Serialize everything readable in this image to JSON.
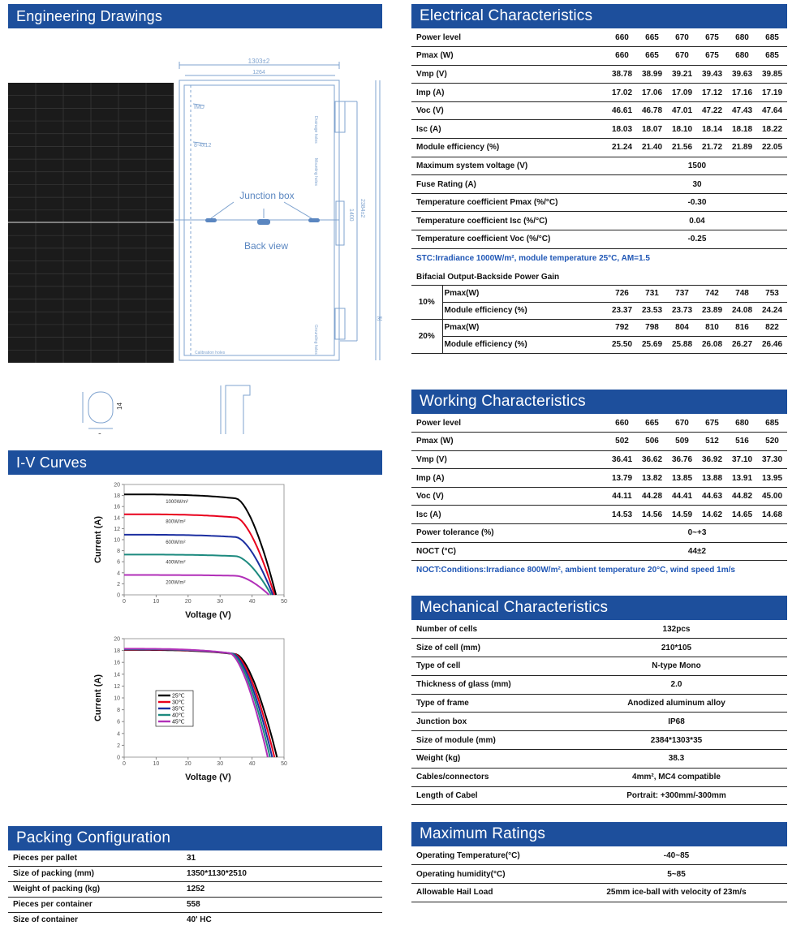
{
  "engineering": {
    "title": "Engineering Drawings",
    "dims": {
      "width_total": "1303±2",
      "width_inner": "1264",
      "side_len": "2384±2",
      "side_inner": "1400",
      "thickness": "35",
      "corner_h": "14",
      "corner_w": "9"
    },
    "labels": {
      "junction_box": "Junction box",
      "back_view": "Back view",
      "drainage": "Drainage holes",
      "mounting": "Mounting holes",
      "grounding": "Grounding holes",
      "calibration": "Calibration holes",
      "gap1": "IMD",
      "gap2": "8-4x12"
    }
  },
  "iv": {
    "title": "I-V Curves",
    "xlabel": "Voltage (V)",
    "ylabel": "Current (A)"
  },
  "chart_data": [
    {
      "type": "line",
      "xlabel": "Voltage (V)",
      "ylabel": "Current (A)",
      "xlim": [
        0,
        50
      ],
      "ylim": [
        0,
        20
      ],
      "xticks": [
        "0",
        "10",
        "20",
        "30",
        "40",
        "50"
      ],
      "yticks": [
        "0",
        "2",
        "4",
        "6",
        "8",
        "10",
        "12",
        "14",
        "16",
        "18",
        "20"
      ],
      "series": [
        {
          "name": "1000W/m²",
          "isc": 18.2,
          "knee": 35,
          "voc": 47.5,
          "color": "#000000"
        },
        {
          "name": "800W/m²",
          "isc": 14.6,
          "knee": 35,
          "voc": 47.0,
          "color": "#e8001c"
        },
        {
          "name": "600W/m²",
          "isc": 10.9,
          "knee": 35,
          "voc": 46.5,
          "color": "#1b2ea0"
        },
        {
          "name": "400W/m²",
          "isc": 7.3,
          "knee": 35,
          "voc": 46.0,
          "color": "#1d8a7f"
        },
        {
          "name": "200W/m²",
          "isc": 3.6,
          "knee": 35,
          "voc": 45.3,
          "color": "#b12fb8"
        }
      ]
    },
    {
      "type": "line",
      "xlabel": "Voltage (V)",
      "ylabel": "Current (A)",
      "xlim": [
        0,
        50
      ],
      "ylim": [
        0,
        20
      ],
      "xticks": [
        "0",
        "10",
        "20",
        "30",
        "40",
        "50"
      ],
      "yticks": [
        "0",
        "2",
        "4",
        "6",
        "8",
        "10",
        "12",
        "14",
        "16",
        "18",
        "20"
      ],
      "legend": "center-left",
      "series": [
        {
          "name": "25℃",
          "isc": 18.1,
          "knee": 35,
          "voc": 47.8,
          "color": "#000000"
        },
        {
          "name": "30℃",
          "isc": 18.15,
          "knee": 34.5,
          "voc": 47.0,
          "color": "#e8001c"
        },
        {
          "name": "35℃",
          "isc": 18.2,
          "knee": 34,
          "voc": 46.3,
          "color": "#1b2ea0"
        },
        {
          "name": "40℃",
          "isc": 18.25,
          "knee": 33.5,
          "voc": 45.6,
          "color": "#1d8a7f"
        },
        {
          "name": "45℃",
          "isc": 18.3,
          "knee": 33,
          "voc": 44.9,
          "color": "#b12fb8"
        }
      ]
    }
  ],
  "packing": {
    "title": "Packing Configuration",
    "rows": [
      {
        "label": "Pieces per pallet",
        "value": "31"
      },
      {
        "label": "Size of packing (mm)",
        "value": "1350*1130*2510"
      },
      {
        "label": "Weight of packing (kg)",
        "value": "1252"
      },
      {
        "label": "Pieces per container",
        "value": "558"
      },
      {
        "label": "Size of container",
        "value": "40' HC"
      }
    ]
  },
  "electrical": {
    "title": "Electrical Characteristics",
    "rows": [
      {
        "label": "Power level",
        "values": [
          "660",
          "665",
          "670",
          "675",
          "680",
          "685"
        ]
      },
      {
        "label": "Pmax (W)",
        "values": [
          "660",
          "665",
          "670",
          "675",
          "680",
          "685"
        ]
      },
      {
        "label": "Vmp (V)",
        "values": [
          "38.78",
          "38.99",
          "39.21",
          "39.43",
          "39.63",
          "39.85"
        ]
      },
      {
        "label": "Imp (A)",
        "values": [
          "17.02",
          "17.06",
          "17.09",
          "17.12",
          "17.16",
          "17.19"
        ]
      },
      {
        "label": "Voc (V)",
        "values": [
          "46.61",
          "46.78",
          "47.01",
          "47.22",
          "47.43",
          "47.64"
        ]
      },
      {
        "label": "Isc (A)",
        "values": [
          "18.03",
          "18.07",
          "18.10",
          "18.14",
          "18.18",
          "18.22"
        ]
      },
      {
        "label": "Module efficiency (%)",
        "values": [
          "21.24",
          "21.40",
          "21.56",
          "21.72",
          "21.89",
          "22.05"
        ]
      }
    ],
    "single_rows": [
      {
        "label": "Maximum system voltage (V)",
        "value": "1500"
      },
      {
        "label": "Fuse Rating (A)",
        "value": "30"
      },
      {
        "label": "Temperature coefficient  Pmax (%/°C)",
        "value": "-0.30"
      },
      {
        "label": "Temperature coefficient  Isc (%/°C)",
        "value": "0.04"
      },
      {
        "label": "Temperature coefficient  Voc (%/°C)",
        "value": "-0.25"
      }
    ],
    "note": "STC:Irradiance 1000W/m², module temperature 25°C, AM=1.5",
    "bifacial_title": "Bifacial Output-Backside Power Gain",
    "bifacial": [
      {
        "pct": "10%",
        "rows": [
          {
            "label": "Pmax(W)",
            "values": [
              "726",
              "731",
              "737",
              "742",
              "748",
              "753"
            ]
          },
          {
            "label": "Module efficiency (%)",
            "values": [
              "23.37",
              "23.53",
              "23.73",
              "23.89",
              "24.08",
              "24.24"
            ]
          }
        ]
      },
      {
        "pct": "20%",
        "rows": [
          {
            "label": "Pmax(W)",
            "values": [
              "792",
              "798",
              "804",
              "810",
              "816",
              "822"
            ]
          },
          {
            "label": "Module efficiency (%)",
            "values": [
              "25.50",
              "25.69",
              "25.88",
              "26.08",
              "26.27",
              "26.46"
            ]
          }
        ]
      }
    ]
  },
  "working": {
    "title": "Working Characteristics",
    "rows": [
      {
        "label": "Power level",
        "values": [
          "660",
          "665",
          "670",
          "675",
          "680",
          "685"
        ]
      },
      {
        "label": "Pmax (W)",
        "values": [
          "502",
          "506",
          "509",
          "512",
          "516",
          "520"
        ]
      },
      {
        "label": "Vmp (V)",
        "values": [
          "36.41",
          "36.62",
          "36.76",
          "36.92",
          "37.10",
          "37.30"
        ]
      },
      {
        "label": "Imp (A)",
        "values": [
          "13.79",
          "13.82",
          "13.85",
          "13.88",
          "13.91",
          "13.95"
        ]
      },
      {
        "label": "Voc (V)",
        "values": [
          "44.11",
          "44.28",
          "44.41",
          "44.63",
          "44.82",
          "45.00"
        ]
      },
      {
        "label": "Isc (A)",
        "values": [
          "14.53",
          "14.56",
          "14.59",
          "14.62",
          "14.65",
          "14.68"
        ]
      }
    ],
    "single_rows": [
      {
        "label": "Power tolerance (%)",
        "value": "0~+3"
      },
      {
        "label": "NOCT (°C)",
        "value": "44±2"
      }
    ],
    "note": "NOCT:Conditions:Irradiance 800W/m², ambient temperature 20°C, wind speed 1m/s"
  },
  "mechanical": {
    "title": "Mechanical Characteristics",
    "rows": [
      {
        "label": "Number of cells",
        "value": "132pcs"
      },
      {
        "label": "Size of cell (mm)",
        "value": "210*105"
      },
      {
        "label": "Type of cell",
        "value": "N-type Mono"
      },
      {
        "label": "Thickness of glass (mm)",
        "value": "2.0"
      },
      {
        "label": "Type of frame",
        "value": "Anodized aluminum alloy"
      },
      {
        "label": "Junction box",
        "value": "IP68"
      },
      {
        "label": "Size of module (mm)",
        "value": "2384*1303*35"
      },
      {
        "label": "Weight (kg)",
        "value": "38.3"
      },
      {
        "label": "Cables/connectors",
        "value": "4mm², MC4 compatible"
      },
      {
        "label": "Length of Cabel",
        "value": "Portrait: +300mm/-300mm"
      }
    ]
  },
  "ratings": {
    "title": "Maximum Ratings",
    "rows": [
      {
        "label": "Operating Temperature(°C)",
        "value": "-40~85"
      },
      {
        "label": "Operating humidity(°C)",
        "value": "5~85"
      },
      {
        "label": "Allowable Hail Load",
        "value": "25mm ice-ball with velocity of 23m/s"
      }
    ]
  }
}
